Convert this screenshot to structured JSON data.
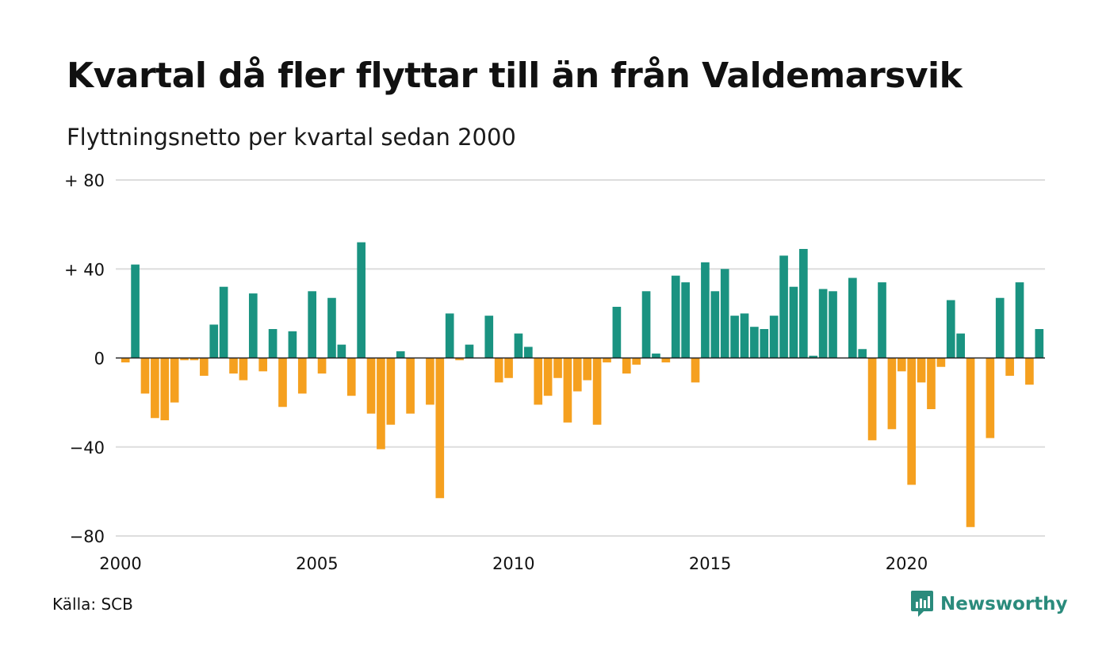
{
  "header": {
    "title": "Kvartal då fler flyttar till än från Valdemarsvik",
    "subtitle": "Flyttningsnetto per kvartal sedan 2000"
  },
  "footer": {
    "source": "Källa: SCB",
    "brand": "Newsworthy"
  },
  "colors": {
    "positive": "#1a9381",
    "negative": "#f5a01f",
    "grid": "#dddddd",
    "baseline": "#222222",
    "brand": "#2a8b7c"
  },
  "chart_data": {
    "type": "bar",
    "x_start": "2000 Q1",
    "x_end": "2023 Q2",
    "xlim": [
      2000,
      2023.5
    ],
    "ylim": [
      -80,
      80
    ],
    "yticks": [
      {
        "value": 80,
        "label": "+ 80"
      },
      {
        "value": 40,
        "label": "+ 40"
      },
      {
        "value": 0,
        "label": "0"
      },
      {
        "value": -40,
        "label": "−40"
      },
      {
        "value": -80,
        "label": "−80"
      }
    ],
    "xticks": [
      {
        "value": 2000,
        "label": "2000"
      },
      {
        "value": 2005,
        "label": "2005"
      },
      {
        "value": 2010,
        "label": "2010"
      },
      {
        "value": 2015,
        "label": "2015"
      },
      {
        "value": 2020,
        "label": "2020"
      }
    ],
    "grid": true,
    "legend": false,
    "categories": [
      "2000 Q1",
      "2000 Q2",
      "2000 Q3",
      "2000 Q4",
      "2001 Q1",
      "2001 Q2",
      "2001 Q3",
      "2001 Q4",
      "2002 Q1",
      "2002 Q2",
      "2002 Q3",
      "2002 Q4",
      "2003 Q1",
      "2003 Q2",
      "2003 Q3",
      "2003 Q4",
      "2004 Q1",
      "2004 Q2",
      "2004 Q3",
      "2004 Q4",
      "2005 Q1",
      "2005 Q2",
      "2005 Q3",
      "2005 Q4",
      "2006 Q1",
      "2006 Q2",
      "2006 Q3",
      "2006 Q4",
      "2007 Q1",
      "2007 Q2",
      "2007 Q3",
      "2007 Q4",
      "2008 Q1",
      "2008 Q2",
      "2008 Q3",
      "2008 Q4",
      "2009 Q1",
      "2009 Q2",
      "2009 Q3",
      "2009 Q4",
      "2010 Q1",
      "2010 Q2",
      "2010 Q3",
      "2010 Q4",
      "2011 Q1",
      "2011 Q2",
      "2011 Q3",
      "2011 Q4",
      "2012 Q1",
      "2012 Q2",
      "2012 Q3",
      "2012 Q4",
      "2013 Q1",
      "2013 Q2",
      "2013 Q3",
      "2013 Q4",
      "2014 Q1",
      "2014 Q2",
      "2014 Q3",
      "2014 Q4",
      "2015 Q1",
      "2015 Q2",
      "2015 Q3",
      "2015 Q4",
      "2016 Q1",
      "2016 Q2",
      "2016 Q3",
      "2016 Q4",
      "2017 Q1",
      "2017 Q2",
      "2017 Q3",
      "2017 Q4",
      "2018 Q1",
      "2018 Q2",
      "2018 Q3",
      "2018 Q4",
      "2019 Q1",
      "2019 Q2",
      "2019 Q3",
      "2019 Q4",
      "2020 Q1",
      "2020 Q2",
      "2020 Q3",
      "2020 Q4",
      "2021 Q1",
      "2021 Q2",
      "2021 Q3",
      "2021 Q4",
      "2022 Q1",
      "2022 Q2",
      "2022 Q3",
      "2022 Q4",
      "2023 Q1",
      "2023 Q2"
    ],
    "values": [
      -2,
      42,
      -16,
      -27,
      -28,
      -20,
      -1,
      -1,
      -8,
      15,
      32,
      -7,
      -10,
      29,
      -6,
      13,
      -22,
      12,
      -16,
      30,
      -7,
      27,
      6,
      -17,
      52,
      -25,
      -41,
      -30,
      3,
      -25,
      0,
      -21,
      -63,
      20,
      -1,
      6,
      0,
      19,
      -11,
      -9,
      11,
      5,
      -21,
      -17,
      -9,
      -29,
      -15,
      -10,
      -30,
      -2,
      23,
      -7,
      -3,
      30,
      2,
      -2,
      37,
      34,
      -11,
      43,
      30,
      40,
      19,
      20,
      14,
      13,
      19,
      46,
      32,
      49,
      1,
      31,
      30,
      0,
      36,
      4,
      -37,
      34,
      -32,
      -6,
      -57,
      -11,
      -23,
      -4,
      26,
      11,
      -76,
      0,
      -36,
      27,
      -8,
      34,
      -12,
      13
    ]
  }
}
